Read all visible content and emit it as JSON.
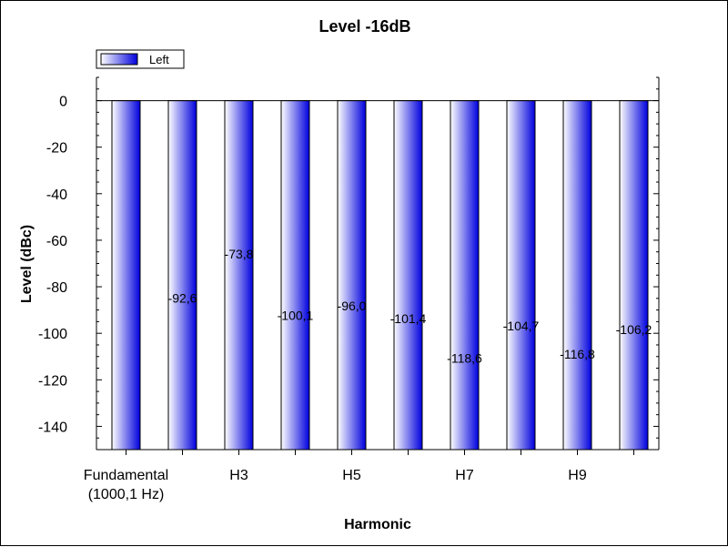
{
  "chart_data": {
    "type": "bar",
    "title": "Level -16dB",
    "xlabel": "Harmonic",
    "ylabel": "Level (dBc)",
    "categories": [
      "Fundamental\n(1000,1 Hz)",
      "",
      "H3",
      "",
      "H5",
      "",
      "H7",
      "",
      "H9",
      ""
    ],
    "series": [
      {
        "name": "Left",
        "values": [
          0,
          -92.6,
          -73.8,
          -100.1,
          -96.0,
          -101.4,
          -118.6,
          -104.7,
          -116.8,
          -106.2
        ],
        "labels": [
          "",
          "-92,6",
          "-73,8",
          "-100,1",
          "-96,0",
          "-101,4",
          "-118,6",
          "-104,7",
          "-116,8",
          "-106,2"
        ]
      }
    ],
    "ylim": [
      -150,
      10
    ],
    "yticks": [
      0,
      -20,
      -40,
      -60,
      -80,
      -100,
      -120,
      -140
    ],
    "ytick_labels": [
      "0",
      "-20",
      "-40",
      "-60",
      "-80",
      "-100",
      "-120",
      "-140"
    ],
    "legend_position": "top-left",
    "grid": false,
    "colors": {
      "bar_dark": "#0000dd",
      "bar_light": "#ffffff",
      "axis": "#000000",
      "frame": "#000000"
    }
  }
}
